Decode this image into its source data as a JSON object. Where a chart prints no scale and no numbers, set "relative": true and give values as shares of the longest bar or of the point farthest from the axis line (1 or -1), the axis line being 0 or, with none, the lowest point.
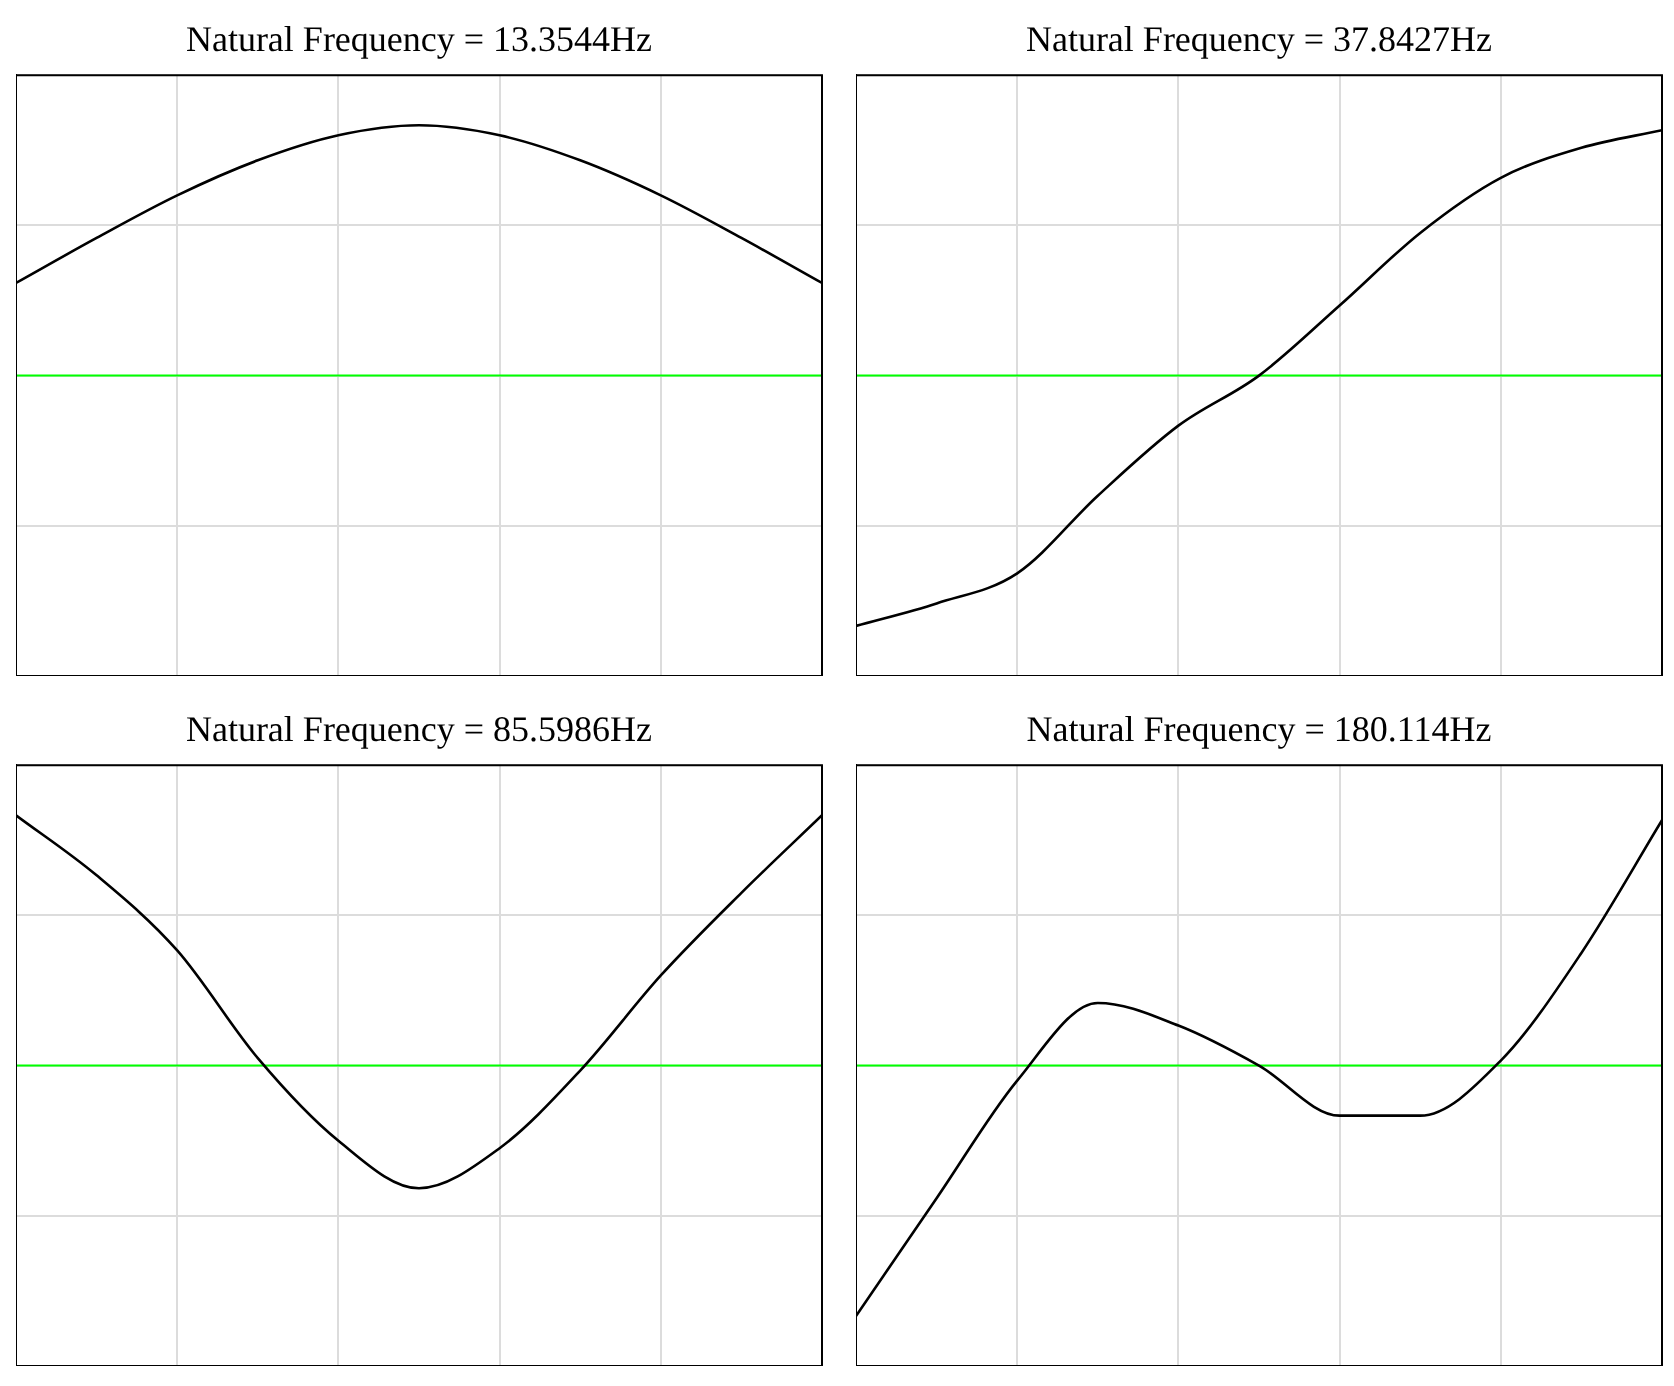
{
  "chart_data": [
    {
      "type": "line",
      "title": "Natural Frequency = 13.3544Hz",
      "categories": [
        null,
        null,
        null,
        null,
        null,
        null,
        null,
        null,
        null,
        null,
        null
      ],
      "relative": true,
      "grid": true,
      "ref_lines": [
        {
          "axis": "y",
          "value": 0,
          "color": "#00ff00"
        }
      ],
      "series": [
        {
          "color": "#000000",
          "values": [
            0.37,
            0.55,
            0.72,
            0.86,
            0.96,
            1,
            0.96,
            0.86,
            0.72,
            0.55,
            0.37
          ]
        }
      ]
    },
    {
      "type": "line",
      "title": "Natural Frequency = 37.8427Hz",
      "categories": [
        null,
        null,
        null,
        null,
        null,
        null,
        null,
        null,
        null,
        null,
        null
      ],
      "relative": true,
      "grid": true,
      "ref_lines": [
        {
          "axis": "y",
          "value": 0,
          "color": "#00ff00"
        }
      ],
      "series": [
        {
          "color": "#000000",
          "values": [
            -1,
            -0.91,
            -0.79,
            -0.48,
            -0.2,
            0,
            0.28,
            0.57,
            0.79,
            0.91,
            0.98
          ]
        }
      ]
    },
    {
      "type": "line",
      "title": "Natural Frequency = 85.5986Hz",
      "categories": [
        null,
        null,
        null,
        null,
        null,
        null,
        null,
        null,
        null,
        null,
        null
      ],
      "relative": true,
      "grid": true,
      "ref_lines": [
        {
          "axis": "y",
          "value": 0,
          "color": "#00ff00"
        }
      ],
      "series": [
        {
          "color": "#000000",
          "values": [
            1,
            0.76,
            0.46,
            0.03,
            -0.3,
            -0.49,
            -0.33,
            -0.02,
            0.36,
            0.69,
            1
          ]
        }
      ]
    },
    {
      "type": "line",
      "title": "Natural Frequency = 180.114Hz",
      "categories": [
        null,
        null,
        null,
        null,
        null,
        null,
        null,
        null,
        null,
        null,
        null
      ],
      "relative": true,
      "grid": true,
      "ref_lines": [
        {
          "axis": "y",
          "value": 0,
          "color": "#00ff00"
        }
      ],
      "series": [
        {
          "color": "#000000",
          "values": [
            -1,
            -0.53,
            -0.06,
            0.25,
            0.16,
            0,
            -0.2,
            -0.2,
            0.02,
            0.45,
            0.98
          ]
        }
      ]
    }
  ]
}
